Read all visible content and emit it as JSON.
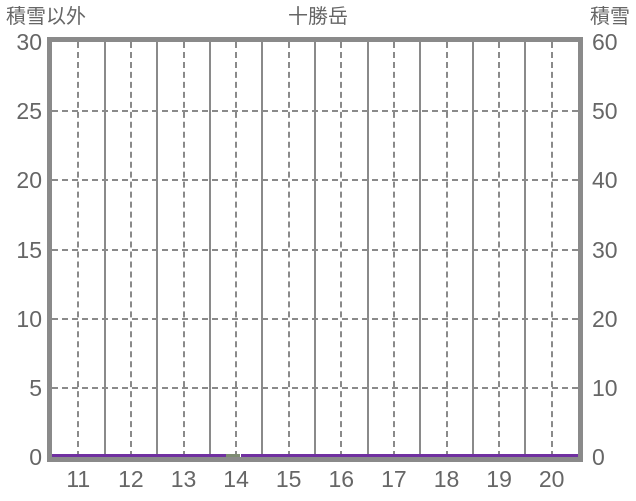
{
  "header": {
    "left_axis_title": "積雪以外",
    "chart_title": "十勝岳",
    "right_axis_title": "積雪"
  },
  "left_axis": {
    "ticks": [
      "30",
      "25",
      "20",
      "15",
      "10",
      "5",
      "0"
    ]
  },
  "right_axis": {
    "ticks": [
      "60",
      "50",
      "40",
      "30",
      "20",
      "10",
      "0"
    ]
  },
  "x_axis": {
    "ticks": [
      "11",
      "12",
      "13",
      "14",
      "15",
      "16",
      "17",
      "18",
      "19",
      "20"
    ]
  },
  "colors": {
    "grid": "#8a8a8a",
    "frame": "#8a8a8a",
    "text": "#666666",
    "purple_series": "#7030a0",
    "green_series": "#7e8c72",
    "background": "#ffffff"
  },
  "chart_data": {
    "type": "line",
    "title": "十勝岳",
    "axes": {
      "left": {
        "label": "積雪以外",
        "min": 0,
        "max": 30,
        "tick_step": 5
      },
      "right": {
        "label": "積雪",
        "min": 0,
        "max": 60,
        "tick_step": 10
      },
      "x": {
        "min": 10.5,
        "max": 20.5,
        "tick_labels": [
          11,
          12,
          13,
          14,
          15,
          16,
          17,
          18,
          19,
          20
        ]
      }
    },
    "grid": {
      "vertical_solid": "year boundaries",
      "vertical_dashed": "year centers",
      "horizontal_dashed": "every axis tick value"
    },
    "series": [
      {
        "name": "purple-line",
        "axis": "left",
        "color": "#7030a0",
        "value": 0,
        "x_start": 10.5,
        "x_end": 20.5,
        "gap": [
          13.8,
          14.1
        ]
      },
      {
        "name": "green-segment",
        "axis": "left",
        "color": "#7e8c72",
        "value": 0,
        "x_start": 13.81,
        "x_end": 14.08
      }
    ]
  }
}
